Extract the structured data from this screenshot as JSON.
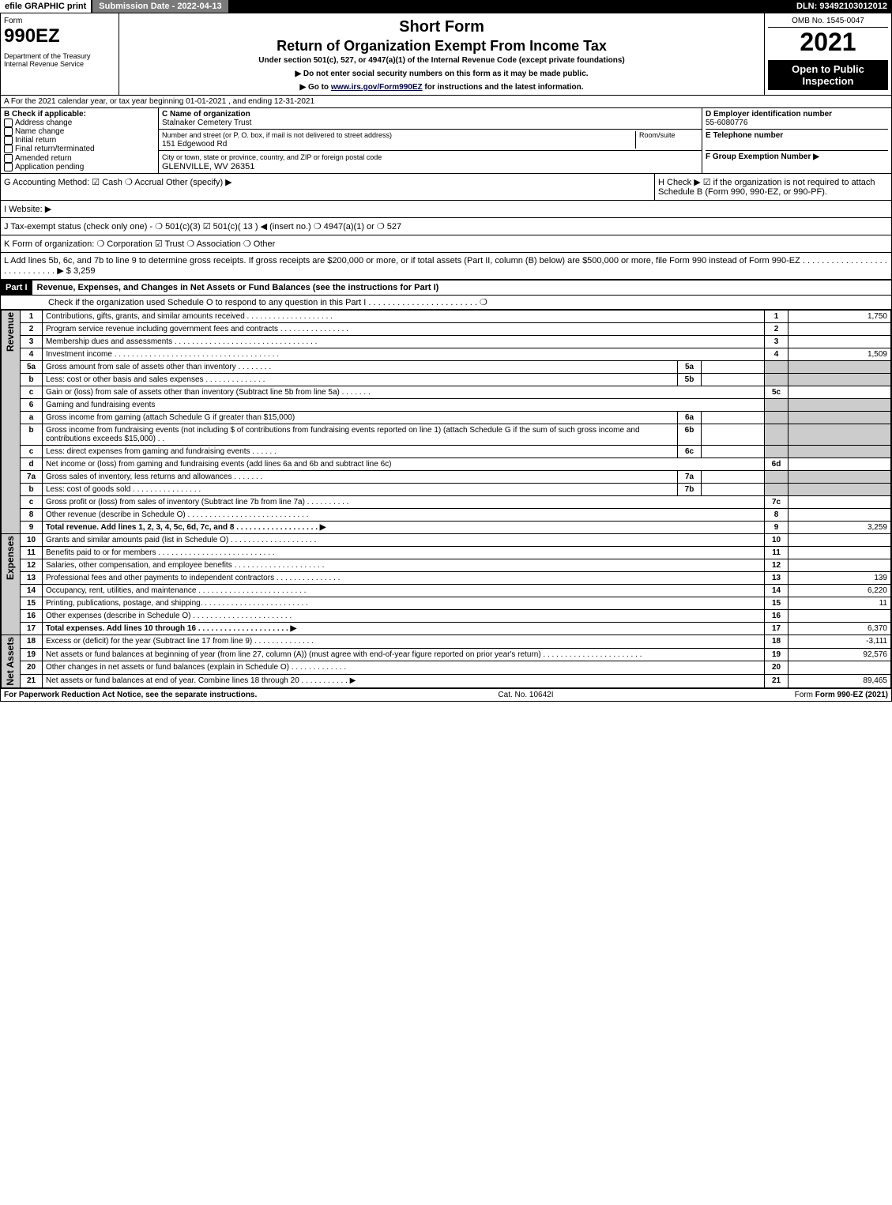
{
  "topbar": {
    "efile": "efile GRAPHIC print",
    "submission": "Submission Date - 2022-04-13",
    "dln": "DLN: 93492103012012"
  },
  "header": {
    "form": "Form",
    "code": "990EZ",
    "dept": "Department of the Treasury\nInternal Revenue Service",
    "title1": "Short Form",
    "title2": "Return of Organization Exempt From Income Tax",
    "subtitle": "Under section 501(c), 527, or 4947(a)(1) of the Internal Revenue Code (except private foundations)",
    "note1": "▶ Do not enter social security numbers on this form as it may be made public.",
    "note2_pre": "▶ Go to ",
    "note2_link": "www.irs.gov/Form990EZ",
    "note2_post": " for instructions and the latest information.",
    "omb": "OMB No. 1545-0047",
    "year": "2021",
    "badge": "Open to Public Inspection"
  },
  "sectionA": "A  For the 2021 calendar year, or tax year beginning 01-01-2021 , and ending 12-31-2021",
  "sectionB": {
    "label": "B  Check if applicable:",
    "items": [
      "Address change",
      "Name change",
      "Initial return",
      "Final return/terminated",
      "Amended return",
      "Application pending"
    ]
  },
  "sectionC": {
    "name_label": "C Name of organization",
    "name": "Stalnaker Cemetery Trust",
    "street_label": "Number and street (or P. O. box, if mail is not delivered to street address)",
    "room_label": "Room/suite",
    "street": "151 Edgewood Rd",
    "city_label": "City or town, state or province, country, and ZIP or foreign postal code",
    "city": "GLENVILLE, WV  26351"
  },
  "sectionD": {
    "label": "D Employer identification number",
    "value": "55-6080776"
  },
  "sectionE": {
    "label": "E Telephone number",
    "value": ""
  },
  "sectionF": {
    "label": "F Group Exemption Number  ▶",
    "value": ""
  },
  "sectionG": "G Accounting Method:    ☑ Cash   ❍ Accrual   Other (specify) ▶",
  "sectionH": "H  Check ▶ ☑ if the organization is not required to attach Schedule B (Form 990, 990-EZ, or 990-PF).",
  "sectionI": "I Website: ▶",
  "sectionJ": "J Tax-exempt status (check only one) - ❍ 501(c)(3)  ☑ 501(c)( 13 ) ◀ (insert no.)  ❍ 4947(a)(1) or  ❍ 527",
  "sectionK": "K Form of organization:   ❍ Corporation   ☑ Trust   ❍ Association   ❍ Other",
  "sectionL": {
    "text": "L Add lines 5b, 6c, and 7b to line 9 to determine gross receipts. If gross receipts are $200,000 or more, or if total assets (Part II, column (B) below) are $500,000 or more, file Form 990 instead of Form 990-EZ  . . . . . . . . . . . . . . . . . . . . . . . . . . . . . ▶ $",
    "amount": "3,259"
  },
  "part1": {
    "label": "Part I",
    "title": "Revenue, Expenses, and Changes in Net Assets or Fund Balances (see the instructions for Part I)",
    "check": "Check if the organization used Schedule O to respond to any question in this Part I . . . . . . . . . . . . . . . . . . . . . . . ❍"
  },
  "sections": [
    {
      "side": "Revenue",
      "rows": [
        {
          "n": "1",
          "t": "Contributions, gifts, grants, and similar amounts received  . . . . . . . . . . . . . . . . . . . .",
          "ln": "1",
          "amt": "1,750"
        },
        {
          "n": "2",
          "t": "Program service revenue including government fees and contracts . . . . . . . . . . . . . . . .",
          "ln": "2",
          "amt": ""
        },
        {
          "n": "3",
          "t": "Membership dues and assessments . . . . . . . . . . . . . . . . . . . . . . . . . . . . . . . . .",
          "ln": "3",
          "amt": ""
        },
        {
          "n": "4",
          "t": "Investment income . . . . . . . . . . . . . . . . . . . . . . . . . . . . . . . . . . . . . .",
          "ln": "4",
          "amt": "1,509"
        },
        {
          "n": "5a",
          "t": "Gross amount from sale of assets other than inventory  . . . . . . . .",
          "inl": "5a",
          "shade": true
        },
        {
          "n": "b",
          "t": "Less: cost or other basis and sales expenses . . . . . . . . . . . . . .",
          "inl": "5b",
          "shade": true
        },
        {
          "n": "c",
          "t": "Gain or (loss) from sale of assets other than inventory (Subtract line 5b from line 5a)  . . . . . . .",
          "ln": "5c",
          "amt": ""
        },
        {
          "n": "6",
          "t": "Gaming and fundraising events",
          "shade": true
        },
        {
          "n": "a",
          "t": "Gross income from gaming (attach Schedule G if greater than $15,000)",
          "inl": "6a",
          "shade": true
        },
        {
          "n": "b",
          "t": "Gross income from fundraising events (not including $                       of contributions from fundraising events reported on line 1) (attach Schedule G if the sum of such gross income and contributions exceeds $15,000)    . .",
          "inl": "6b",
          "shade": true
        },
        {
          "n": "c",
          "t": "Less: direct expenses from gaming and fundraising events   . . . . . .",
          "inl": "6c",
          "shade": true
        },
        {
          "n": "d",
          "t": "Net income or (loss) from gaming and fundraising events (add lines 6a and 6b and subtract line 6c)",
          "ln": "6d",
          "amt": ""
        },
        {
          "n": "7a",
          "t": "Gross sales of inventory, less returns and allowances  . . . . . . .",
          "inl": "7a",
          "shade": true
        },
        {
          "n": "b",
          "t": "Less: cost of goods sold          . . . . . . . . . . . . . . . .",
          "inl": "7b",
          "shade": true
        },
        {
          "n": "c",
          "t": "Gross profit or (loss) from sales of inventory (Subtract line 7b from line 7a)  . . . . . . . . . .",
          "ln": "7c",
          "amt": ""
        },
        {
          "n": "8",
          "t": "Other revenue (describe in Schedule O) . . . . . . . . . . . . . . . . . . . . . . . . . . . .",
          "ln": "8",
          "amt": ""
        },
        {
          "n": "9",
          "t": "Total revenue. Add lines 1, 2, 3, 4, 5c, 6d, 7c, and 8  . . . . . . . . . . . . . . . . . . .    ▶",
          "ln": "9",
          "amt": "3,259",
          "bold": true
        }
      ]
    },
    {
      "side": "Expenses",
      "rows": [
        {
          "n": "10",
          "t": "Grants and similar amounts paid (list in Schedule O) . . . . . . . . . . . . . . . . . . . .",
          "ln": "10",
          "amt": ""
        },
        {
          "n": "11",
          "t": "Benefits paid to or for members      . . . . . . . . . . . . . . . . . . . . . . . . . . .",
          "ln": "11",
          "amt": ""
        },
        {
          "n": "12",
          "t": "Salaries, other compensation, and employee benefits . . . . . . . . . . . . . . . . . . . . .",
          "ln": "12",
          "amt": ""
        },
        {
          "n": "13",
          "t": "Professional fees and other payments to independent contractors . . . . . . . . . . . . . . .",
          "ln": "13",
          "amt": "139"
        },
        {
          "n": "14",
          "t": "Occupancy, rent, utilities, and maintenance . . . . . . . . . . . . . . . . . . . . . . . . .",
          "ln": "14",
          "amt": "6,220"
        },
        {
          "n": "15",
          "t": "Printing, publications, postage, and shipping. . . . . . . . . . . . . . . . . . . . . . . . .",
          "ln": "15",
          "amt": "11"
        },
        {
          "n": "16",
          "t": "Other expenses (describe in Schedule O)      . . . . . . . . . . . . . . . . . . . . . . .",
          "ln": "16",
          "amt": ""
        },
        {
          "n": "17",
          "t": "Total expenses. Add lines 10 through 16      . . . . . . . . . . . . . . . . . . . . .    ▶",
          "ln": "17",
          "amt": "6,370",
          "bold": true
        }
      ]
    },
    {
      "side": "Net Assets",
      "rows": [
        {
          "n": "18",
          "t": "Excess or (deficit) for the year (Subtract line 17 from line 9)        . . . . . . . . . . . . . .",
          "ln": "18",
          "amt": "-3,111"
        },
        {
          "n": "19",
          "t": "Net assets or fund balances at beginning of year (from line 27, column (A)) (must agree with end-of-year figure reported on prior year's return) . . . . . . . . . . . . . . . . . . . . . . .",
          "ln": "19",
          "amt": "92,576",
          "two": true
        },
        {
          "n": "20",
          "t": "Other changes in net assets or fund balances (explain in Schedule O) . . . . . . . . . . . . .",
          "ln": "20",
          "amt": ""
        },
        {
          "n": "21",
          "t": "Net assets or fund balances at end of year. Combine lines 18 through 20 . . . . . . . . . . .    ▶",
          "ln": "21",
          "amt": "89,465"
        }
      ]
    }
  ],
  "footer": {
    "left": "For Paperwork Reduction Act Notice, see the separate instructions.",
    "mid": "Cat. No. 10642I",
    "right": "Form 990-EZ (2021)"
  }
}
